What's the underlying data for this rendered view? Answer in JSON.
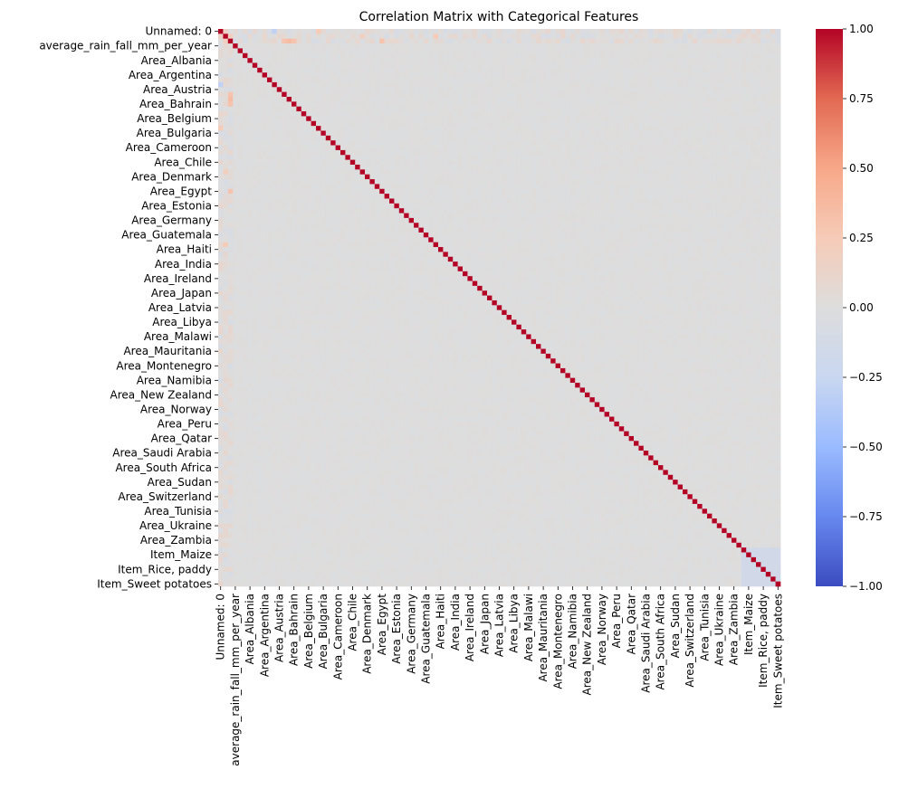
{
  "chart_data": {
    "type": "heatmap",
    "title": "Correlation Matrix with Categorical Features",
    "matrix_size": 115,
    "value_range": [
      -1.0,
      1.0
    ],
    "colormap": "coolwarm",
    "colormap_stops": [
      "#3b4cc0",
      "#6788ee",
      "#9abbff",
      "#c9d7f0",
      "#dddddd",
      "#f6cbb7",
      "#f7a889",
      "#e26952",
      "#b40426"
    ],
    "diagonal_value": 1.0,
    "y_tick_labels": [
      "Unnamed: 0",
      "average_rain_fall_mm_per_year",
      "Area_Albania",
      "Area_Argentina",
      "Area_Austria",
      "Area_Bahrain",
      "Area_Belgium",
      "Area_Bulgaria",
      "Area_Cameroon",
      "Area_Chile",
      "Area_Denmark",
      "Area_Egypt",
      "Area_Estonia",
      "Area_Germany",
      "Area_Guatemala",
      "Area_Haiti",
      "Area_India",
      "Area_Ireland",
      "Area_Japan",
      "Area_Latvia",
      "Area_Libya",
      "Area_Malawi",
      "Area_Mauritania",
      "Area_Montenegro",
      "Area_Namibia",
      "Area_New Zealand",
      "Area_Norway",
      "Area_Peru",
      "Area_Qatar",
      "Area_Saudi Arabia",
      "Area_South Africa",
      "Area_Sudan",
      "Area_Switzerland",
      "Area_Tunisia",
      "Area_Ukraine",
      "Area_Zambia",
      "Item_Maize",
      "Item_Rice, paddy",
      "Item_Sweet potatoes"
    ],
    "x_tick_labels": [
      "Unnamed: 0",
      "average_rain_fall_mm_per_year",
      "Area_Albania",
      "Area_Argentina",
      "Area_Austria",
      "Area_Bahrain",
      "Area_Belgium",
      "Area_Bulgaria",
      "Area_Cameroon",
      "Area_Chile",
      "Area_Denmark",
      "Area_Egypt",
      "Area_Estonia",
      "Area_Germany",
      "Area_Guatemala",
      "Area_Haiti",
      "Area_India",
      "Area_Ireland",
      "Area_Japan",
      "Area_Latvia",
      "Area_Libya",
      "Area_Malawi",
      "Area_Mauritania",
      "Area_Montenegro",
      "Area_Namibia",
      "Area_New Zealand",
      "Area_Norway",
      "Area_Peru",
      "Area_Qatar",
      "Area_Saudi Arabia",
      "Area_South Africa",
      "Area_Sudan",
      "Area_Switzerland",
      "Area_Tunisia",
      "Area_Ukraine",
      "Area_Zambia",
      "Item_Maize",
      "Item_Rice, paddy",
      "Item_Sweet potatoes"
    ],
    "colorbar_ticks": [
      1.0,
      0.75,
      0.5,
      0.25,
      0.0,
      -0.25,
      -0.5,
      -0.75,
      -1.0
    ],
    "colorbar_tick_labels": [
      "1.00",
      "0.75",
      "0.50",
      "0.25",
      "0.00",
      "−0.25",
      "−0.50",
      "−0.75",
      "−1.00"
    ],
    "highlight_cells": [
      {
        "row": 1,
        "col": 0,
        "value": 0.15
      },
      {
        "row": 0,
        "col": 1,
        "value": 0.15
      },
      {
        "row": 1,
        "col": 2,
        "value": 0.2
      },
      {
        "row": 2,
        "col": 1,
        "value": 0.2
      },
      {
        "row": 13,
        "col": 2,
        "value": 0.3
      },
      {
        "row": 14,
        "col": 2,
        "value": 0.35
      },
      {
        "row": 15,
        "col": 2,
        "value": 0.3
      },
      {
        "row": 2,
        "col": 13,
        "value": 0.3
      },
      {
        "row": 2,
        "col": 14,
        "value": 0.35
      },
      {
        "row": 2,
        "col": 15,
        "value": 0.3
      },
      {
        "row": 33,
        "col": 2,
        "value": 0.3
      },
      {
        "row": 2,
        "col": 33,
        "value": 0.3
      },
      {
        "row": 20,
        "col": 0,
        "value": 0.25
      },
      {
        "row": 0,
        "col": 20,
        "value": 0.25
      },
      {
        "row": 0,
        "col": 11,
        "value": -0.3
      },
      {
        "row": 11,
        "col": 0,
        "value": -0.3
      },
      {
        "row": 1,
        "col": 29,
        "value": 0.2
      },
      {
        "row": 29,
        "col": 1,
        "value": 0.2
      },
      {
        "row": 1,
        "col": 44,
        "value": 0.25
      },
      {
        "row": 44,
        "col": 1,
        "value": 0.25
      }
    ],
    "item_block": {
      "start": 107,
      "end": 114,
      "offdiag_value": -0.15
    }
  }
}
